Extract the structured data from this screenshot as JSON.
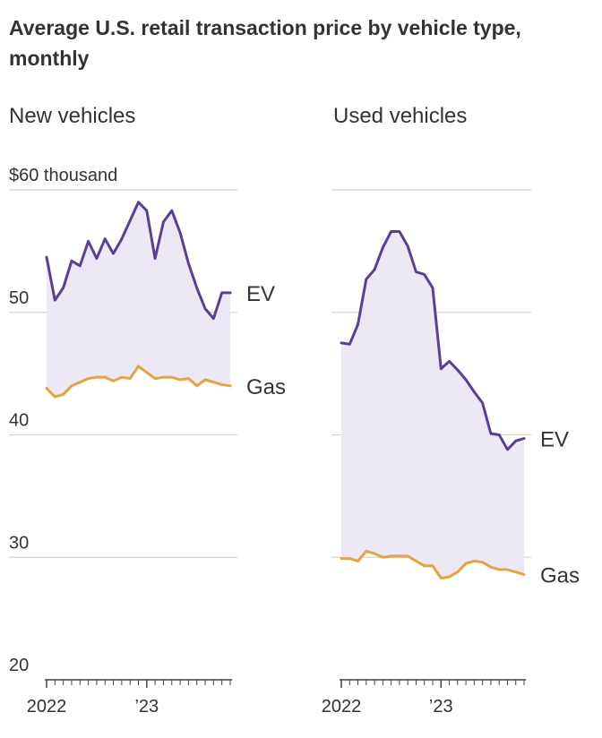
{
  "title": "Average U.S. retail transaction price by vehicle type, monthly",
  "colors": {
    "ev": "#5b3e96",
    "gas": "#e8a33c",
    "fill": "#ece8f4",
    "grid": "#d4d4d4",
    "axis": "#444444"
  },
  "chart_data": [
    {
      "type": "line",
      "title": "New vehicles",
      "ylim": [
        20,
        60
      ],
      "yticks": [
        20,
        30,
        40,
        50,
        60
      ],
      "ytick_labels": [
        "20",
        "30",
        "40",
        "50",
        "$60 thousand"
      ],
      "xtick_labels": [
        {
          "month_index": 0,
          "label": "2022"
        },
        {
          "month_index": 12,
          "label": "’23"
        }
      ],
      "x_months": 24,
      "fill_between": true,
      "series": [
        {
          "name": "EV",
          "key": "ev",
          "values": [
            54.5,
            51.0,
            52.0,
            54.2,
            53.8,
            55.8,
            54.4,
            56.0,
            54.8,
            56.0,
            57.5,
            59.0,
            58.3,
            54.4,
            57.4,
            58.3,
            56.5,
            54.0,
            52.0,
            50.3,
            49.5,
            51.6,
            51.6
          ]
        },
        {
          "name": "Gas",
          "key": "gas",
          "values": [
            43.8,
            43.1,
            43.3,
            44.0,
            44.3,
            44.6,
            44.7,
            44.7,
            44.4,
            44.7,
            44.6,
            45.6,
            45.1,
            44.6,
            44.7,
            44.7,
            44.5,
            44.6,
            44.0,
            44.5,
            44.3,
            44.1,
            44.0
          ]
        }
      ]
    },
    {
      "type": "line",
      "title": "Used vehicles",
      "ylim": [
        20,
        60
      ],
      "yticks": [
        20,
        30,
        40,
        50,
        60
      ],
      "xtick_labels": [
        {
          "month_index": 0,
          "label": "2022"
        },
        {
          "month_index": 12,
          "label": "’23"
        }
      ],
      "x_months": 24,
      "fill_between": true,
      "series": [
        {
          "name": "EV",
          "key": "ev",
          "values": [
            47.5,
            47.4,
            49.0,
            52.7,
            53.5,
            55.3,
            56.6,
            56.6,
            55.4,
            53.3,
            53.1,
            52.0,
            45.4,
            46.0,
            45.3,
            44.5,
            43.5,
            42.6,
            40.1,
            40.0,
            38.8,
            39.5,
            39.7
          ]
        },
        {
          "name": "Gas",
          "key": "gas",
          "values": [
            29.9,
            29.9,
            29.7,
            30.5,
            30.3,
            30.0,
            30.1,
            30.1,
            30.1,
            29.7,
            29.3,
            29.3,
            28.3,
            28.4,
            28.8,
            29.5,
            29.7,
            29.6,
            29.2,
            29.0,
            29.0,
            28.8,
            28.6
          ]
        }
      ]
    }
  ]
}
